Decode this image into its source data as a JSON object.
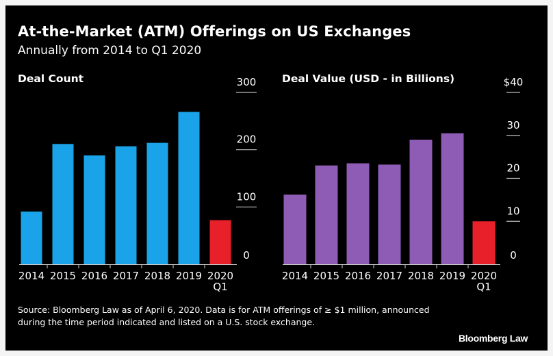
{
  "header": {
    "title": "At-the-Market (ATM) Offerings on US Exchanges",
    "subtitle": "Annually from 2014 to Q1 2020"
  },
  "colors": {
    "background": "#000000",
    "deal_count_bar": "#1aa3e8",
    "deal_value_bar": "#8e5bb5",
    "highlight_bar": "#e8202a",
    "text": "#ffffff",
    "gridline": "#bbbbbb"
  },
  "chart_data": [
    {
      "type": "bar",
      "title": "Deal Count",
      "categories": [
        "2014",
        "2015",
        "2016",
        "2017",
        "2018",
        "2019",
        "2020 Q1"
      ],
      "category_lines": [
        [
          "2014"
        ],
        [
          "2015"
        ],
        [
          "2016"
        ],
        [
          "2017"
        ],
        [
          "2018"
        ],
        [
          "2019"
        ],
        [
          "2020",
          "Q1"
        ]
      ],
      "values": [
        92,
        210,
        190,
        206,
        212,
        266,
        77
      ],
      "highlight_index": 6,
      "ylim": [
        0,
        300
      ],
      "yticks": [
        0,
        100,
        200,
        300
      ],
      "ytick_labels": [
        "0",
        "100",
        "200",
        "300"
      ],
      "yaxis_position": "right",
      "grid": false
    },
    {
      "type": "bar",
      "title": "Deal Value (USD - in Billions)",
      "categories": [
        "2014",
        "2015",
        "2016",
        "2017",
        "2018",
        "2019",
        "2020 Q1"
      ],
      "category_lines": [
        [
          "2014"
        ],
        [
          "2015"
        ],
        [
          "2016"
        ],
        [
          "2017"
        ],
        [
          "2018"
        ],
        [
          "2019"
        ],
        [
          "2020",
          "Q1"
        ]
      ],
      "values": [
        16.2,
        23.0,
        23.5,
        23.2,
        29.0,
        30.5,
        10.0
      ],
      "highlight_index": 6,
      "ylim": [
        0,
        40
      ],
      "yticks": [
        0,
        10,
        20,
        30,
        40
      ],
      "ytick_labels": [
        "0",
        "10",
        "20",
        "30",
        "$40"
      ],
      "yaxis_position": "right",
      "grid": false
    }
  ],
  "footer": {
    "source": "Source: Bloomberg Law as of April 6, 2020. Data is for ATM offerings of ≥ $1 million, announced during the time period indicated and listed on a U.S. stock exchange.",
    "brand": "Bloomberg Law"
  }
}
